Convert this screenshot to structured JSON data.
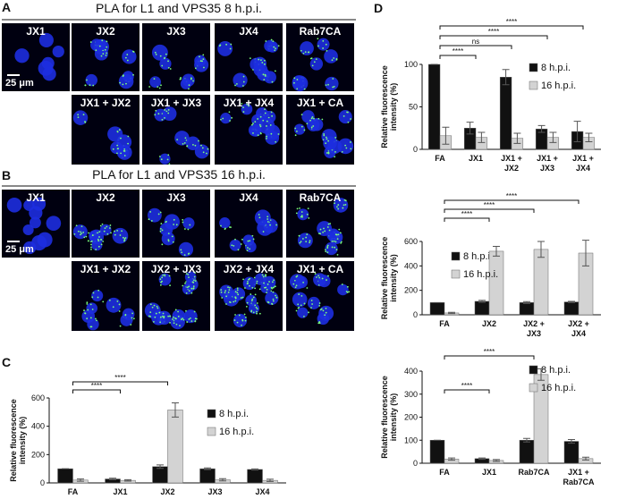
{
  "panel_a": {
    "letter": "A",
    "title": "PLA for L1 and VPS35 8 h.p.i.",
    "scale_bar": "25 μm",
    "images": [
      "JX1",
      "JX2",
      "JX3",
      "JX4",
      "Rab7CA",
      "JX1 + JX2",
      "JX1 + JX3",
      "JX1 + JX4",
      "JX1 + CA"
    ]
  },
  "panel_b": {
    "letter": "B",
    "title": "PLA for L1 and VPS35 16 h.p.i.",
    "scale_bar": "25 μm",
    "images": [
      "JX1",
      "JX2",
      "JX3",
      "JX4",
      "Rab7CA",
      "JX1 + JX2",
      "JX2 + JX3",
      "JX2 + JX4",
      "JX1 + CA"
    ]
  },
  "panel_c": {
    "letter": "C"
  },
  "panel_d": {
    "letter": "D"
  },
  "chart_data": [
    {
      "type": "bar",
      "y_label": "Relative fluorescence intensity (%)",
      "categories": [
        "FA",
        "JX1",
        "JX2",
        "JX3",
        "JX4"
      ],
      "series": [
        {
          "name": "8 h.p.i.",
          "color": "#111111",
          "values": [
            100,
            28,
            115,
            100,
            95
          ],
          "errors": [
            0,
            5,
            12,
            6,
            4
          ]
        },
        {
          "name": "16 h.p.i.",
          "color": "#d3d3d3",
          "values": [
            20,
            18,
            515,
            22,
            18
          ],
          "errors": [
            8,
            5,
            50,
            8,
            8
          ]
        }
      ],
      "ylim": [
        0,
        600
      ],
      "yticks": [
        0,
        200,
        400,
        600
      ],
      "annotations": [
        {
          "from": "FA",
          "to": "JX1",
          "label": "****"
        },
        {
          "from": "FA",
          "to": "JX2",
          "label": "****"
        }
      ]
    },
    {
      "type": "bar",
      "y_label": "Relative fluorescence intensity (%)",
      "categories": [
        "FA",
        "JX1",
        "JX1 + JX2",
        "JX1 + JX3",
        "JX1 + JX4"
      ],
      "series": [
        {
          "name": "8 h.p.i.",
          "color": "#111111",
          "values": [
            100,
            25,
            85,
            24,
            21
          ],
          "errors": [
            0,
            7,
            9,
            4,
            12
          ]
        },
        {
          "name": "16 h.p.i.",
          "color": "#d3d3d3",
          "values": [
            16,
            14,
            13,
            14,
            14
          ],
          "errors": [
            10,
            6,
            6,
            6,
            5
          ]
        }
      ],
      "ylim": [
        0,
        100
      ],
      "yticks": [
        0,
        50,
        100
      ],
      "annotations": [
        {
          "from": "FA",
          "to": "JX1",
          "label": "****"
        },
        {
          "from": "FA",
          "to": "JX1 + JX2",
          "label": "ns"
        },
        {
          "from": "FA",
          "to": "JX1 + JX3",
          "label": "****"
        },
        {
          "from": "FA",
          "to": "JX1 + JX4",
          "label": "****"
        }
      ]
    },
    {
      "type": "bar",
      "y_label": "Relative fluorescence intensity (%)",
      "categories": [
        "FA",
        "JX2",
        "JX2 + JX3",
        "JX2 + JX4"
      ],
      "series": [
        {
          "name": "8 h.p.i.",
          "color": "#111111",
          "values": [
            100,
            110,
            100,
            105
          ],
          "errors": [
            0,
            8,
            8,
            5
          ]
        },
        {
          "name": "16 h.p.i.",
          "color": "#d3d3d3",
          "values": [
            15,
            520,
            535,
            505
          ],
          "errors": [
            5,
            40,
            65,
            105
          ]
        }
      ],
      "ylim": [
        0,
        600
      ],
      "yticks": [
        0,
        200,
        400,
        600
      ],
      "annotations": [
        {
          "from": "FA",
          "to": "JX2",
          "label": "****"
        },
        {
          "from": "FA",
          "to": "JX2 + JX3",
          "label": "****"
        },
        {
          "from": "FA",
          "to": "JX2 + JX4",
          "label": "****"
        }
      ]
    },
    {
      "type": "bar",
      "y_label": "Relative fluorescence intensity (%)",
      "categories": [
        "FA",
        "JX1",
        "Rab7CA",
        "JX1 + Rab7CA"
      ],
      "series": [
        {
          "name": "8 h.p.i.",
          "color": "#111111",
          "values": [
            100,
            20,
            100,
            95
          ],
          "errors": [
            0,
            3,
            8,
            8
          ]
        },
        {
          "name": "16 h.p.i.",
          "color": "#d3d3d3",
          "values": [
            18,
            12,
            385,
            20
          ],
          "errors": [
            5,
            4,
            25,
            6
          ]
        }
      ],
      "ylim": [
        0,
        400
      ],
      "yticks": [
        0,
        100,
        200,
        300,
        400
      ],
      "annotations": [
        {
          "from": "FA",
          "to": "JX1",
          "label": "****"
        },
        {
          "from": "FA",
          "to": "Rab7CA",
          "label": "****"
        }
      ]
    }
  ]
}
